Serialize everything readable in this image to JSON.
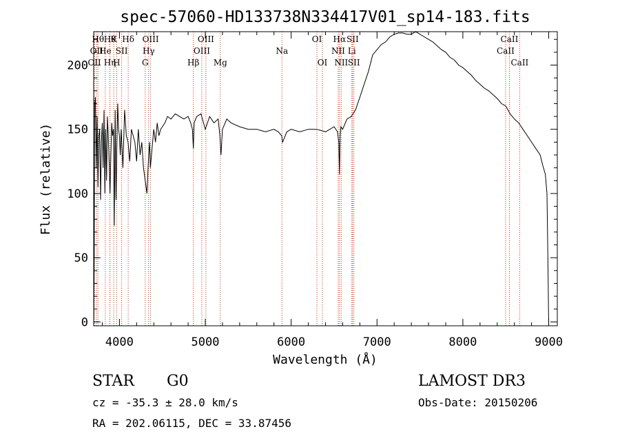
{
  "chart_data": {
    "type": "line",
    "title": "spec-57060-HD133738N334417V01_sp14-183.fits",
    "xlabel": "Wavelength (Å)",
    "ylabel": "Flux (relative)",
    "xlim": [
      3700,
      9100
    ],
    "ylim": [
      -3,
      226
    ],
    "x_ticks": [
      4000,
      5000,
      6000,
      7000,
      8000,
      9000
    ],
    "y_ticks": [
      0,
      50,
      100,
      150,
      200
    ],
    "series": [
      {
        "name": "flux",
        "x": [
          3700,
          3705,
          3712,
          3720,
          3730,
          3740,
          3750,
          3760,
          3770,
          3780,
          3790,
          3800,
          3810,
          3820,
          3830,
          3840,
          3850,
          3860,
          3870,
          3880,
          3890,
          3900,
          3910,
          3920,
          3930,
          3940,
          3950,
          3960,
          3970,
          3980,
          3990,
          4000,
          4010,
          4020,
          4040,
          4060,
          4080,
          4100,
          4120,
          4140,
          4160,
          4180,
          4200,
          4220,
          4240,
          4260,
          4280,
          4300,
          4320,
          4340,
          4350,
          4360,
          4380,
          4400,
          4420,
          4440,
          4460,
          4480,
          4500,
          4530,
          4560,
          4600,
          4650,
          4700,
          4750,
          4800,
          4830,
          4850,
          4861,
          4870,
          4900,
          4950,
          5000,
          5050,
          5100,
          5150,
          5170,
          5183,
          5200,
          5250,
          5300,
          5400,
          5500,
          5600,
          5700,
          5800,
          5850,
          5890,
          5900,
          5950,
          6000,
          6100,
          6200,
          6300,
          6400,
          6500,
          6540,
          6555,
          6563,
          6570,
          6580,
          6600,
          6650,
          6700,
          6750,
          6800,
          6850,
          6900,
          6950,
          7000,
          7050,
          7100,
          7150,
          7200,
          7250,
          7300,
          7350,
          7400,
          7450,
          7500,
          7550,
          7600,
          7650,
          7700,
          7750,
          7800,
          7850,
          7900,
          7950,
          8000,
          8050,
          8100,
          8150,
          8200,
          8250,
          8300,
          8350,
          8400,
          8450,
          8500,
          8550,
          8600,
          8650,
          8700,
          8750,
          8800,
          8850,
          8900,
          8930,
          8960,
          8980,
          8990,
          9000
        ],
        "y": [
          0,
          40,
          170,
          175,
          120,
          160,
          105,
          145,
          150,
          95,
          140,
          155,
          120,
          165,
          100,
          150,
          110,
          160,
          145,
          125,
          100,
          130,
          155,
          145,
          150,
          75,
          165,
          95,
          140,
          170,
          150,
          145,
          130,
          150,
          120,
          165,
          145,
          140,
          125,
          150,
          145,
          140,
          125,
          150,
          130,
          140,
          120,
          110,
          100,
          130,
          140,
          120,
          135,
          150,
          140,
          155,
          145,
          150,
          152,
          155,
          160,
          158,
          162,
          160,
          158,
          160,
          155,
          150,
          135,
          155,
          160,
          162,
          150,
          160,
          155,
          158,
          145,
          130,
          150,
          158,
          155,
          152,
          150,
          150,
          148,
          150,
          148,
          145,
          140,
          148,
          150,
          148,
          150,
          150,
          148,
          152,
          148,
          140,
          115,
          145,
          152,
          150,
          158,
          160,
          165,
          175,
          185,
          195,
          208,
          212,
          216,
          218,
          222,
          224,
          225,
          225,
          224,
          224,
          226,
          224,
          222,
          220,
          218,
          215,
          212,
          210,
          206,
          204,
          200,
          198,
          195,
          192,
          188,
          185,
          182,
          180,
          177,
          174,
          170,
          168,
          162,
          158,
          155,
          150,
          145,
          140,
          135,
          130,
          122,
          115,
          100,
          50,
          -3
        ]
      }
    ],
    "lines": [
      {
        "wl": 3709,
        "label": "OII",
        "row": 2
      },
      {
        "wl": 3734,
        "label": "OII",
        "row": 1
      },
      {
        "wl": 3750,
        "label": "Hθ",
        "row": 0
      },
      {
        "wl": 3835,
        "label": "He",
        "row": 1
      },
      {
        "wl": 3889,
        "label": "Hθ",
        "row": 0
      },
      {
        "wl": 3889,
        "label": "Hη",
        "row": 2
      },
      {
        "wl": 3934,
        "label": "K",
        "row": 0
      },
      {
        "wl": 3968,
        "label": "H",
        "row": 2
      },
      {
        "wl": 4026,
        "label": "SII",
        "row": 1
      },
      {
        "wl": 4102,
        "label": "Hδ",
        "row": 0
      },
      {
        "wl": 4300,
        "label": "G",
        "row": 2
      },
      {
        "wl": 4340,
        "label": "Hγ",
        "row": 1
      },
      {
        "wl": 4363,
        "label": "OIII",
        "row": 0
      },
      {
        "wl": 4861,
        "label": "Hβ",
        "row": 2
      },
      {
        "wl": 4959,
        "label": "OIII",
        "row": 1
      },
      {
        "wl": 5007,
        "label": "OIII",
        "row": 0
      },
      {
        "wl": 5175,
        "label": "Mg",
        "row": 2
      },
      {
        "wl": 5893,
        "label": "Na",
        "row": 1
      },
      {
        "wl": 6300,
        "label": "OI",
        "row": 0
      },
      {
        "wl": 6364,
        "label": "OI",
        "row": 2
      },
      {
        "wl": 6548,
        "label": "NII",
        "row": 1
      },
      {
        "wl": 6563,
        "label": "Hα",
        "row": 0
      },
      {
        "wl": 6583,
        "label": "NII",
        "row": 2
      },
      {
        "wl": 6707,
        "label": "Li",
        "row": 1
      },
      {
        "wl": 6716,
        "label": "SII",
        "row": 0
      },
      {
        "wl": 6731,
        "label": "SII",
        "row": 2
      },
      {
        "wl": 8498,
        "label": "CaII",
        "row": 1
      },
      {
        "wl": 8542,
        "label": "CaII",
        "row": 0
      },
      {
        "wl": 8662,
        "label": "CaII",
        "row": 2
      }
    ]
  },
  "info": {
    "class": "STAR",
    "subclass": "G0",
    "survey": "LAMOST DR3",
    "redshift": "cz = -35.3 ± 28.0 km/s",
    "obs_date": "Obs-Date: 20150206",
    "coords": "RA = 202.06115, DEC =  33.87456"
  },
  "colors": {
    "spectrum": "#000000",
    "line_marker": "#cc2200"
  }
}
